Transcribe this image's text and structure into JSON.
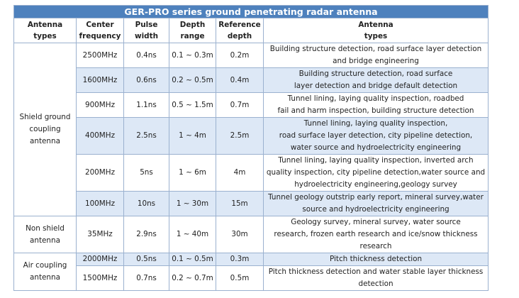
{
  "table": {
    "title": "GER-PRO series ground penetrating radar antenna",
    "headers": {
      "antenna_types": [
        "Antenna",
        "types"
      ],
      "center_frequency": [
        "Center",
        "frequency"
      ],
      "pulse_width": [
        "Pulse",
        "width"
      ],
      "depth_range": [
        "Depth",
        "range"
      ],
      "reference_depth": [
        "Reference",
        "depth"
      ],
      "antenna_types_app": [
        "Antenna",
        "types"
      ]
    },
    "groups": [
      {
        "type_lines": [
          "Shield ground",
          "coupling",
          "antenna"
        ],
        "rows": [
          {
            "freq": "2500MHz",
            "pulse": "0.4ns",
            "range": "0.1 ~ 0.3m",
            "depth": "0.2m",
            "desc": [
              "Building structure detection, road surface layer detection",
              "and bridge engineering"
            ]
          },
          {
            "freq": "1600MHz",
            "pulse": "0.6ns",
            "range": "0.2 ~ 0.5m",
            "depth": "0.4m",
            "desc": [
              "Building structure detection, road surface",
              "layer detection and bridge default detection"
            ]
          },
          {
            "freq": "900MHz",
            "pulse": "1.1ns",
            "range": "0.5 ~ 1.5m",
            "depth": "0.7m",
            "desc": [
              "Tunnel lining, laying quality inspection, roadbed",
              "fail and harm inspection, building structure detection"
            ]
          },
          {
            "freq": "400MHz",
            "pulse": "2.5ns",
            "range": "1 ~ 4m",
            "depth": "2.5m",
            "desc": [
              "Tunnel lining, laying quality inspection,",
              "road surface layer detection, city pipeline detection,",
              "water source and hydroelectricity engineering"
            ]
          },
          {
            "freq": "200MHz",
            "pulse": "5ns",
            "range": "1 ~ 6m",
            "depth": "4m",
            "desc": [
              "Tunnel lining, laying quality inspection, inverted arch",
              "quality inspection, city pipeline detection,water source and",
              "hydroelectricity engineering,geology survey"
            ]
          },
          {
            "freq": "100MHz",
            "pulse": "10ns",
            "range": "1 ~ 30m",
            "depth": "15m",
            "desc": [
              "Tunnel geology outstrip early report, mineral survey,water",
              "source and hydroelectricity engineering"
            ]
          }
        ]
      },
      {
        "type_lines": [
          "Non shield",
          "antenna"
        ],
        "rows": [
          {
            "freq": "35MHz",
            "pulse": "2.9ns",
            "range": "1 ~ 40m",
            "depth": "30m",
            "desc": [
              "Geology survey, mineral survey, water source",
              "research, frozen earth research and ice/snow thickness",
              "research"
            ]
          }
        ]
      },
      {
        "type_lines": [
          "Air coupling",
          "antenna"
        ],
        "rows": [
          {
            "freq": "2000MHz",
            "pulse": "0.5ns",
            "range": "0.1 ~ 0.5m",
            "depth": "0.3m",
            "desc": [
              "Pitch thickness detection"
            ]
          },
          {
            "freq": "1500MHz",
            "pulse": "0.7ns",
            "range": "0.2 ~ 0.7m",
            "depth": "0.5m",
            "desc": [
              "Pitch thickness detection and water stable layer thickness",
              "detection"
            ]
          }
        ]
      }
    ]
  }
}
